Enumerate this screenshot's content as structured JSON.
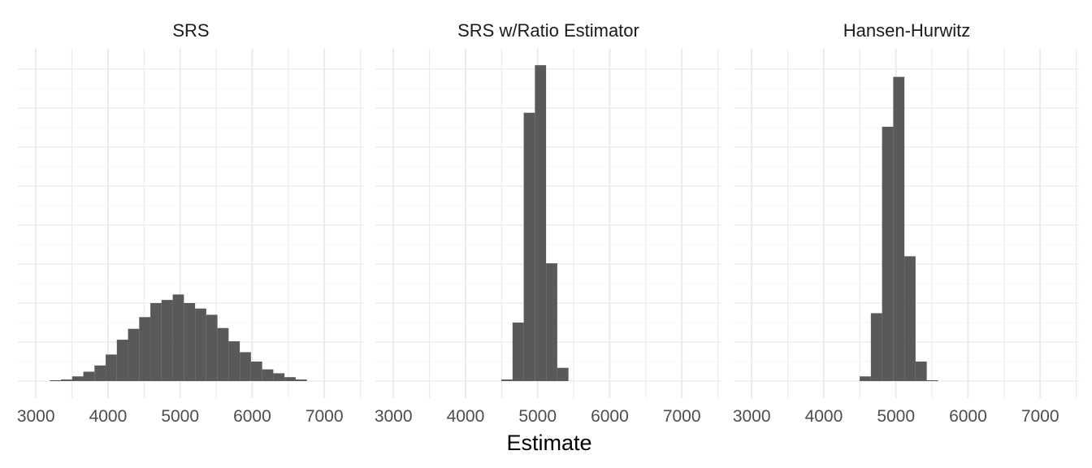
{
  "chart_data": {
    "type": "bar",
    "facet_variable": "method",
    "xlabel": "Estimate",
    "ylabel": "",
    "xlim": [
      2750,
      7550
    ],
    "xticks": [
      3000,
      4000,
      5000,
      6000,
      7000
    ],
    "x_minor_ticks": [
      2500,
      3500,
      4500,
      5500,
      6500,
      7500
    ],
    "ylim": [
      0,
      400
    ],
    "grid": true,
    "legend": "none",
    "bar_color": "#595959",
    "bin_width": 155,
    "panels": [
      {
        "title": "SRS",
        "bins": [
          {
            "x": 3270,
            "count": 1
          },
          {
            "x": 3425,
            "count": 2
          },
          {
            "x": 3580,
            "count": 6
          },
          {
            "x": 3735,
            "count": 12
          },
          {
            "x": 3890,
            "count": 20
          },
          {
            "x": 4045,
            "count": 34
          },
          {
            "x": 4200,
            "count": 53
          },
          {
            "x": 4355,
            "count": 67
          },
          {
            "x": 4510,
            "count": 82
          },
          {
            "x": 4665,
            "count": 100
          },
          {
            "x": 4820,
            "count": 104
          },
          {
            "x": 4975,
            "count": 111
          },
          {
            "x": 5130,
            "count": 100
          },
          {
            "x": 5285,
            "count": 93
          },
          {
            "x": 5440,
            "count": 85
          },
          {
            "x": 5595,
            "count": 68
          },
          {
            "x": 5750,
            "count": 51
          },
          {
            "x": 5905,
            "count": 37
          },
          {
            "x": 6060,
            "count": 25
          },
          {
            "x": 6215,
            "count": 15
          },
          {
            "x": 6370,
            "count": 10
          },
          {
            "x": 6525,
            "count": 5
          },
          {
            "x": 6680,
            "count": 2
          }
        ]
      },
      {
        "title": "SRS w/Ratio Estimator",
        "bins": [
          {
            "x": 4575,
            "count": 2
          },
          {
            "x": 4730,
            "count": 75
          },
          {
            "x": 4885,
            "count": 344
          },
          {
            "x": 5040,
            "count": 405
          },
          {
            "x": 5195,
            "count": 151
          },
          {
            "x": 5350,
            "count": 17
          }
        ]
      },
      {
        "title": "Hansen-Hurwitz",
        "bins": [
          {
            "x": 4575,
            "count": 6
          },
          {
            "x": 4730,
            "count": 87
          },
          {
            "x": 4885,
            "count": 326
          },
          {
            "x": 5040,
            "count": 390
          },
          {
            "x": 5195,
            "count": 160
          },
          {
            "x": 5350,
            "count": 25
          },
          {
            "x": 5505,
            "count": 1
          }
        ]
      }
    ]
  }
}
